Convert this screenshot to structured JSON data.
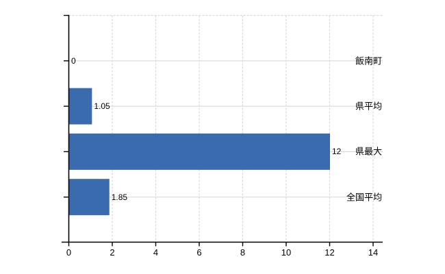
{
  "chart_data": {
    "type": "bar",
    "orientation": "horizontal",
    "title": "",
    "categories": [
      "飯南町",
      "県平均",
      "県最大",
      "全国平均"
    ],
    "values": [
      0,
      1.05,
      12,
      1.85
    ],
    "value_labels": [
      "0",
      "1.05",
      "12",
      "1.85"
    ],
    "xlabel": "",
    "ylabel": "",
    "xlim": [
      0,
      14.45
    ],
    "xticks": [
      0,
      2,
      4,
      6,
      8,
      10,
      12,
      14
    ],
    "xtick_labels": [
      "0",
      "2",
      "4",
      "6",
      "8",
      "10",
      "12",
      "14"
    ],
    "grid": {
      "vertical_style": "dashed",
      "horizontal_style": "solid",
      "top_border_style": "dashed"
    },
    "legend": null,
    "colors": {
      "bar": "#3a6bae",
      "axis": "#000000",
      "grid_vertical": "#d9d9d9",
      "grid_horizontal": "#d8ddd8",
      "text": "#000000",
      "background": "#ffffff"
    }
  }
}
